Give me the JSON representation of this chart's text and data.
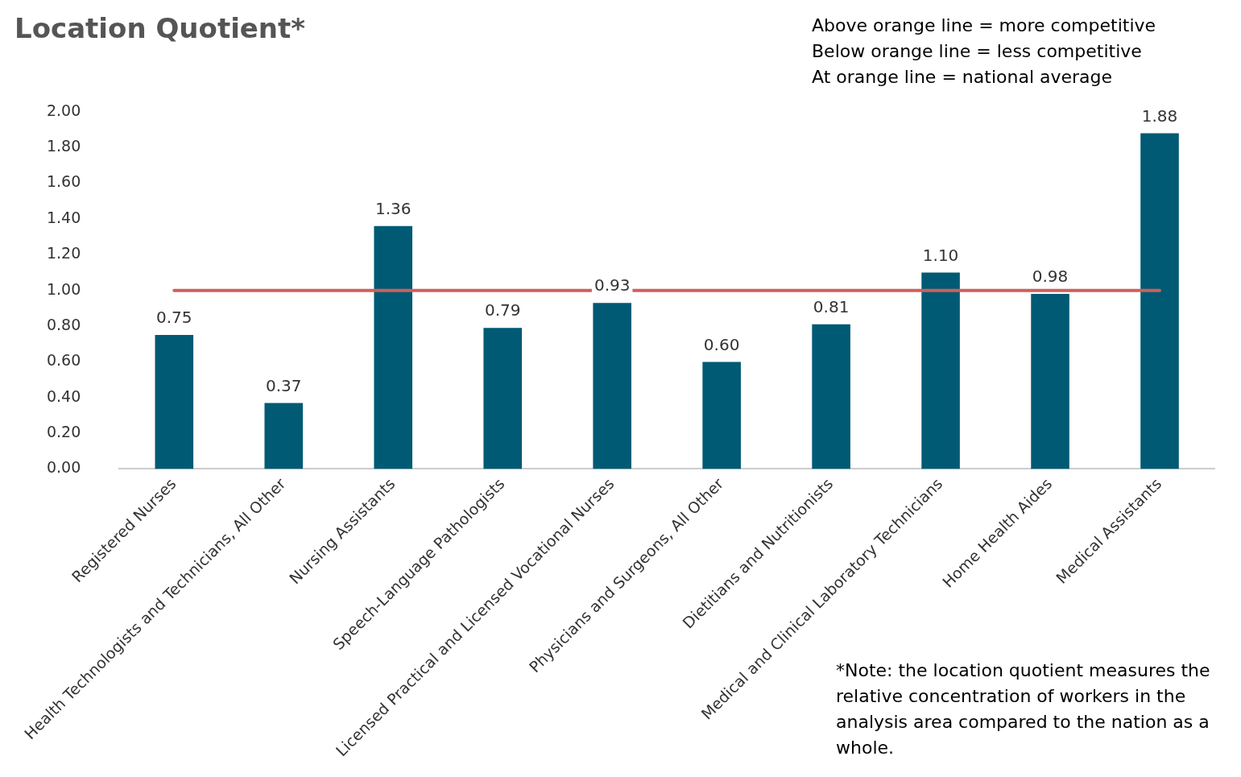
{
  "chart_data": {
    "type": "bar",
    "title": "Location Quotient*",
    "categories": [
      "Registered Nurses",
      "Health Technologists and Technicians, All Other",
      "Nursing Assistants",
      "Speech-Language Pathologists",
      "Licensed Practical and Licensed Vocational Nurses",
      "Physicians and Surgeons, All Other",
      "Dietitians and Nutritionists",
      "Medical and Clinical Laboratory Technicians",
      "Home Health Aides",
      "Medical Assistants"
    ],
    "values": [
      0.75,
      0.37,
      1.36,
      0.79,
      0.93,
      0.6,
      0.81,
      1.1,
      0.98,
      1.88
    ],
    "color": "#005a74",
    "value_labels": [
      "0.75",
      "0.37",
      "1.36",
      "0.79",
      "0.93",
      "0.60",
      "0.81",
      "1.10",
      "0.98",
      "1.88"
    ],
    "ylim": [
      0,
      2
    ],
    "yticks": [
      {
        "value": 0,
        "label": "0.00"
      },
      {
        "value": 0.2,
        "label": "0.20"
      },
      {
        "value": 0.4,
        "label": "0.40"
      },
      {
        "value": 0.6,
        "label": "0.60"
      },
      {
        "value": 0.8,
        "label": "0.80"
      },
      {
        "value": 1,
        "label": "1.00"
      },
      {
        "value": 1.2,
        "label": "1.20"
      },
      {
        "value": 1.4,
        "label": "1.40"
      },
      {
        "value": 1.6,
        "label": "1.60"
      },
      {
        "value": 1.8,
        "label": "1.80"
      },
      {
        "value": 2,
        "label": "2.00"
      }
    ],
    "grid": false,
    "ref_lines": [
      {
        "axis": "y",
        "value": 1,
        "color": "#cf5f5c"
      }
    ],
    "annotations": [
      "Above orange line = more competitive",
      "Below orange line = less competitive",
      "At orange line = national average",
      "*Note: the location quotient measures the relative concentration of workers in the analysis area compared to the nation as a whole."
    ]
  }
}
